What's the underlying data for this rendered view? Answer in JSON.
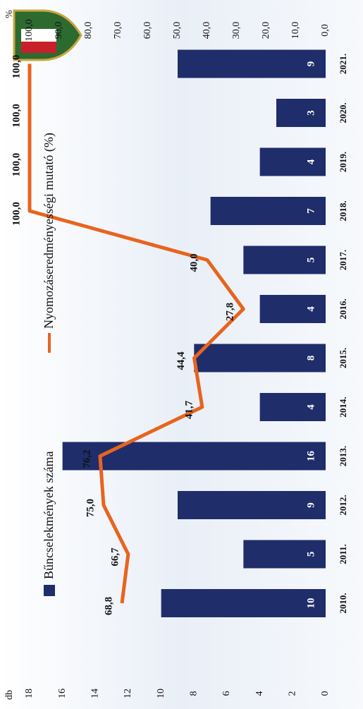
{
  "chart_data": {
    "type": "combo",
    "categories": [
      "2010.",
      "2011.",
      "2012.",
      "2013.",
      "2014.",
      "2015.",
      "2016.",
      "2017.",
      "2018.",
      "2019.",
      "2020.",
      "2021."
    ],
    "y_label": "db",
    "y2_label": "%",
    "ylim": [
      0,
      18
    ],
    "yticks": [
      0,
      2,
      4,
      6,
      8,
      10,
      12,
      14,
      16,
      18
    ],
    "y2lim": [
      0,
      100
    ],
    "y2ticks": [
      {
        "value": 0,
        "label": "0,0"
      },
      {
        "value": 10,
        "label": "10,0"
      },
      {
        "value": 20,
        "label": "20,0"
      },
      {
        "value": 30,
        "label": "30,0"
      },
      {
        "value": 40,
        "label": "40,0"
      },
      {
        "value": 50,
        "label": "50,0"
      },
      {
        "value": 60,
        "label": "60,0"
      },
      {
        "value": 70,
        "label": "70,0"
      },
      {
        "value": 80,
        "label": "80,0"
      },
      {
        "value": 90,
        "label": "90,0"
      },
      {
        "value": 100,
        "label": "100,0"
      }
    ],
    "grid": false,
    "legend": "top",
    "series": [
      {
        "name": "Bűncselekmények száma",
        "type": "bar",
        "color": "#1f2d6b",
        "values": [
          10,
          5,
          9,
          16,
          4,
          8,
          4,
          5,
          7,
          4,
          3,
          9
        ]
      },
      {
        "name": "Nyomozáseredményességi mutató (%)",
        "type": "line",
        "axis": "y2",
        "color": "#e8641e",
        "values": [
          68.8,
          66.7,
          75.0,
          76.2,
          41.7,
          44.4,
          27.8,
          40.0,
          100.0,
          100.0,
          100.0,
          100.0
        ],
        "value_labels": [
          "68,8",
          "66,7",
          "75,0",
          "76,2",
          "41,7",
          "44,4",
          "27,8",
          "40,0",
          "100,0",
          "100,0",
          "100,0",
          "100,0"
        ]
      }
    ]
  }
}
